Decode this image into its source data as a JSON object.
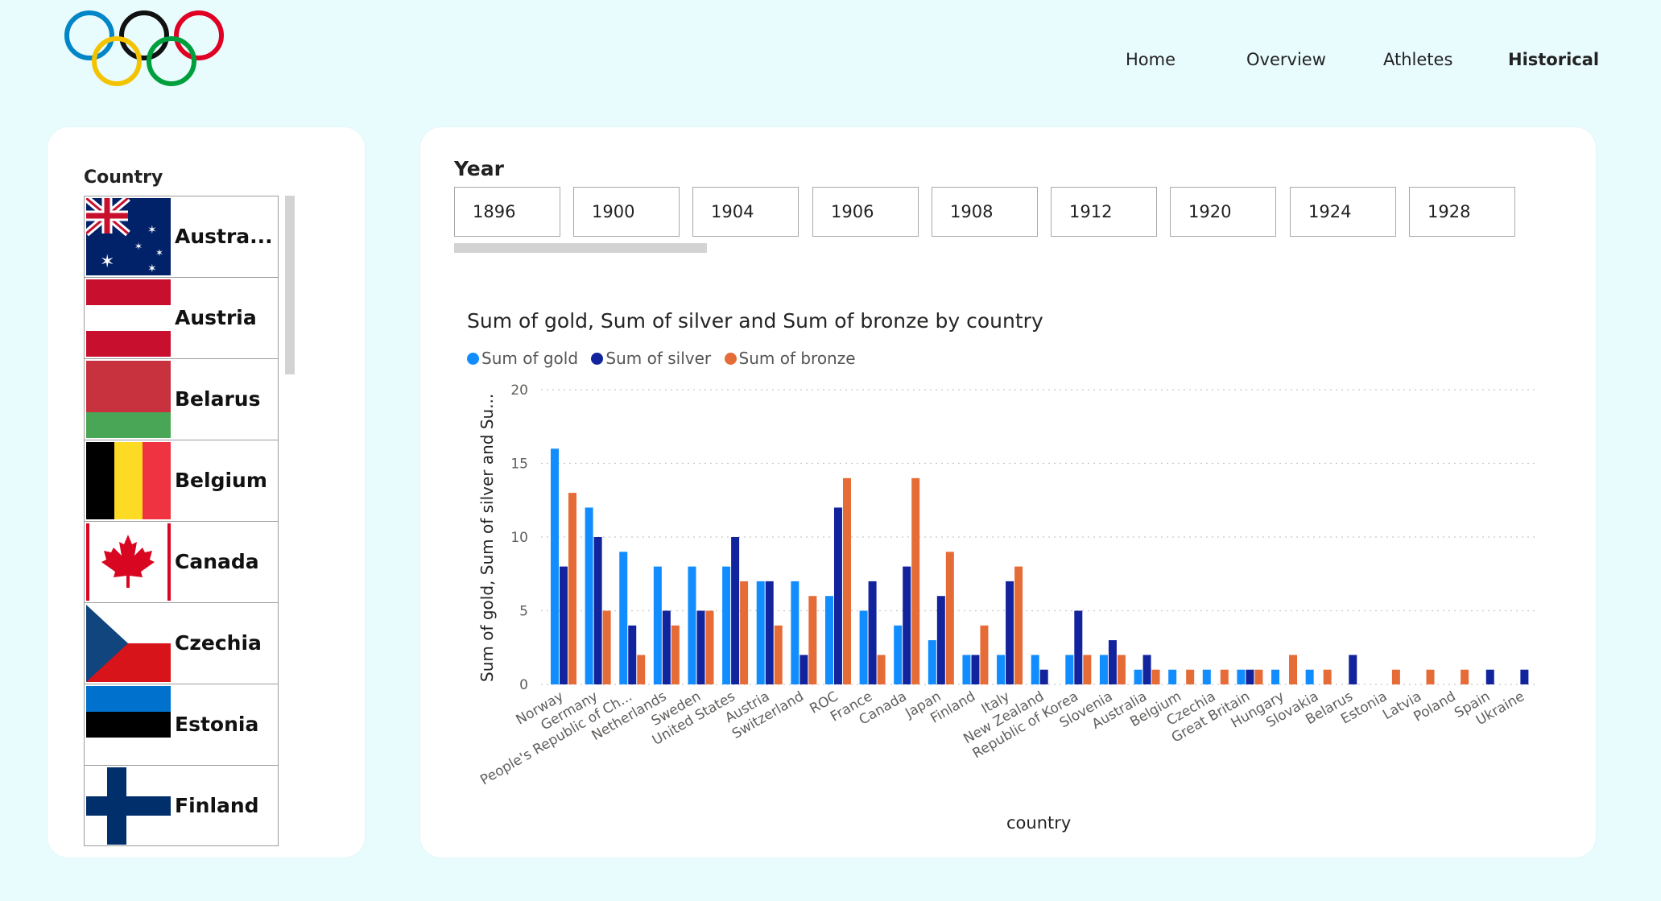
{
  "nav": {
    "items": [
      {
        "label": "Home"
      },
      {
        "label": "Overview"
      },
      {
        "label": "Athletes"
      },
      {
        "label": "Historical"
      }
    ]
  },
  "country_filter": {
    "title": "Country",
    "items": [
      {
        "label": "Austra...",
        "flag": "australia-flag"
      },
      {
        "label": "Austria",
        "flag": "austria-flag"
      },
      {
        "label": "Belarus",
        "flag": "belarus-flag"
      },
      {
        "label": "Belgium",
        "flag": "belgium-flag"
      },
      {
        "label": "Canada",
        "flag": "canada-flag"
      },
      {
        "label": "Czechia",
        "flag": "czechia-flag"
      },
      {
        "label": "Estonia",
        "flag": "estonia-flag"
      },
      {
        "label": "Finland",
        "flag": "finland-flag"
      }
    ]
  },
  "year_filter": {
    "title": "Year",
    "items": [
      "1896",
      "1900",
      "1904",
      "1906",
      "1908",
      "1912",
      "1920",
      "1924",
      "1928"
    ]
  },
  "colors": {
    "gold": "#118dff",
    "silver": "#12239e",
    "bronze": "#e66c37"
  },
  "chart_data": {
    "type": "bar",
    "title": "Sum of gold, Sum of silver and Sum of bronze by country",
    "xlabel": "country",
    "ylabel": "Sum of gold, Sum of silver and Su...",
    "ylim": [
      0,
      20
    ],
    "yticks": [
      "0",
      "5",
      "10",
      "15",
      "20"
    ],
    "grid": true,
    "legend_position": "top-left",
    "categories": [
      "Norway",
      "Germany",
      "People's Republic of Ch...",
      "Netherlands",
      "Sweden",
      "United States",
      "Austria",
      "Switzerland",
      "ROC",
      "France",
      "Canada",
      "Japan",
      "Finland",
      "Italy",
      "New Zealand",
      "Republic of Korea",
      "Slovenia",
      "Australia",
      "Belgium",
      "Czechia",
      "Great Britain",
      "Hungary",
      "Slovakia",
      "Belarus",
      "Estonia",
      "Latvia",
      "Poland",
      "Spain",
      "Ukraine"
    ],
    "series": [
      {
        "name": "Sum of gold",
        "values": [
          16,
          12,
          9,
          8,
          8,
          8,
          7,
          7,
          6,
          5,
          4,
          3,
          2,
          2,
          2,
          2,
          2,
          1,
          1,
          1,
          1,
          1,
          1,
          0,
          0,
          0,
          0,
          0,
          0
        ]
      },
      {
        "name": "Sum of silver",
        "values": [
          8,
          10,
          4,
          5,
          5,
          10,
          7,
          2,
          12,
          7,
          8,
          6,
          2,
          7,
          1,
          5,
          3,
          2,
          0,
          0,
          1,
          0,
          0,
          2,
          0,
          0,
          0,
          1,
          1
        ]
      },
      {
        "name": "Sum of bronze",
        "values": [
          13,
          5,
          2,
          4,
          5,
          7,
          4,
          6,
          14,
          2,
          14,
          9,
          4,
          8,
          0,
          2,
          2,
          1,
          1,
          1,
          1,
          2,
          1,
          0,
          1,
          1,
          1,
          0,
          0
        ]
      }
    ]
  }
}
